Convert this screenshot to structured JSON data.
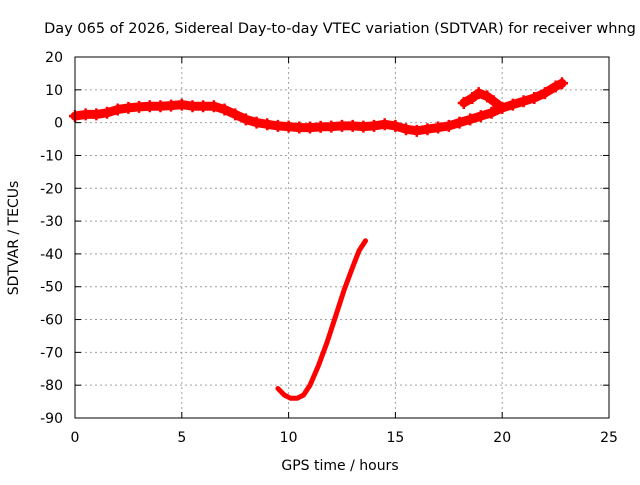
{
  "chart_data": {
    "type": "scatter",
    "title": "Day 065 of 2026, Sidereal Day-to-day VTEC variation (SDTVAR) for receiver whng",
    "xlabel": "GPS time / hours",
    "ylabel": "SDTVAR / TECUs",
    "xlim": [
      0,
      25
    ],
    "ylim": [
      -90,
      20
    ],
    "xticks": [
      0,
      5,
      10,
      15,
      20,
      25
    ],
    "yticks": [
      20,
      10,
      0,
      -10,
      -20,
      -30,
      -40,
      -50,
      -60,
      -70,
      -80,
      -90
    ],
    "grid": true,
    "legend": "none",
    "color": "#ff0000",
    "series": [
      {
        "name": "main",
        "x": [
          0.0,
          0.5,
          1.0,
          1.5,
          2.0,
          2.5,
          3.0,
          3.5,
          4.0,
          4.5,
          5.0,
          5.5,
          6.0,
          6.5,
          7.0,
          7.5,
          8.0,
          8.5,
          9.0,
          9.5,
          10.0,
          10.5,
          11.0,
          11.5,
          12.0,
          12.5,
          13.0,
          13.5,
          14.0,
          14.5,
          15.0,
          15.5,
          16.0,
          16.5,
          17.0,
          17.5,
          18.0,
          18.5,
          19.0,
          19.5,
          20.0,
          20.5,
          21.0,
          21.5,
          22.0,
          22.5,
          22.8
        ],
        "y": [
          2.0,
          2.5,
          2.5,
          3.0,
          4.0,
          4.5,
          4.8,
          5.0,
          5.0,
          5.2,
          5.5,
          5.0,
          5.0,
          5.0,
          4.0,
          2.5,
          1.0,
          0.0,
          -0.5,
          -1.0,
          -1.2,
          -1.5,
          -1.5,
          -1.3,
          -1.2,
          -1.0,
          -1.0,
          -1.2,
          -1.0,
          -0.5,
          -1.0,
          -2.0,
          -2.5,
          -2.0,
          -1.5,
          -1.0,
          0.0,
          1.0,
          2.0,
          3.0,
          4.5,
          5.5,
          6.5,
          7.5,
          9.0,
          11.0,
          12.0
        ]
      },
      {
        "name": "loop",
        "x": [
          18.2,
          18.6,
          18.9,
          19.3,
          19.6,
          20.0
        ],
        "y": [
          6.0,
          7.5,
          9.0,
          8.0,
          6.5,
          4.5
        ]
      },
      {
        "name": "drop",
        "x": [
          9.5,
          9.8,
          10.1,
          10.4,
          10.7,
          11.0,
          11.4,
          11.8,
          12.2,
          12.6,
          13.0,
          13.3,
          13.6
        ],
        "y": [
          -81.0,
          -83.0,
          -84.0,
          -84.0,
          -83.0,
          -80.0,
          -74.0,
          -67.0,
          -59.0,
          -51.0,
          -44.0,
          -39.0,
          -36.0
        ]
      }
    ]
  }
}
